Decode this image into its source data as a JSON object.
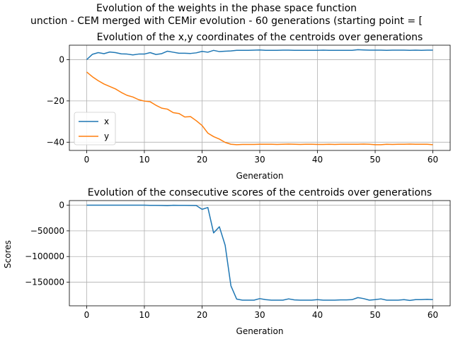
{
  "figure": {
    "suptitle_line1": "Evolution of the weights in the phase space  function",
    "suptitle_line2": "unction - CEM merged with CEMir evolution - 60 generations (starting point = ["
  },
  "chart_data": [
    {
      "type": "line",
      "title": "Evolution of the x,y coordinates of the centroids over generations",
      "xlabel": "Generation",
      "ylabel": "",
      "xlim": [
        -3,
        63
      ],
      "ylim": [
        -44,
        7
      ],
      "xticks": [
        0,
        10,
        20,
        30,
        40,
        50,
        60
      ],
      "yticks": [
        0,
        -20,
        -40
      ],
      "ytick_labels": [
        "0",
        "−20",
        "−40"
      ],
      "grid": true,
      "legend_position": "lower-left",
      "x": [
        0,
        1,
        2,
        3,
        4,
        5,
        6,
        7,
        8,
        9,
        10,
        11,
        12,
        13,
        14,
        15,
        16,
        17,
        18,
        19,
        20,
        21,
        22,
        23,
        24,
        25,
        26,
        27,
        28,
        29,
        30,
        31,
        32,
        33,
        34,
        35,
        36,
        37,
        38,
        39,
        40,
        41,
        42,
        43,
        44,
        45,
        46,
        47,
        48,
        49,
        50,
        51,
        52,
        53,
        54,
        55,
        56,
        57,
        58,
        59,
        60
      ],
      "series": [
        {
          "name": "x",
          "color": "#1f77b4",
          "values": [
            0.0,
            2.6,
            3.4,
            2.9,
            3.7,
            3.4,
            2.8,
            2.7,
            2.3,
            2.7,
            2.7,
            3.4,
            2.5,
            2.9,
            4.1,
            3.6,
            3.1,
            3.1,
            3.0,
            3.3,
            4.0,
            3.6,
            4.5,
            3.9,
            4.1,
            4.2,
            4.5,
            4.5,
            4.5,
            4.6,
            4.7,
            4.5,
            4.5,
            4.5,
            4.6,
            4.6,
            4.5,
            4.5,
            4.5,
            4.5,
            4.5,
            4.6,
            4.5,
            4.5,
            4.5,
            4.5,
            4.5,
            4.8,
            4.7,
            4.6,
            4.6,
            4.6,
            4.5,
            4.6,
            4.6,
            4.6,
            4.5,
            4.6,
            4.5,
            4.6,
            4.6
          ]
        },
        {
          "name": "y",
          "color": "#ff7f0e",
          "values": [
            -6.0,
            -8.3,
            -10.2,
            -11.8,
            -13.0,
            -14.2,
            -15.9,
            -17.3,
            -18.1,
            -19.4,
            -20.1,
            -20.4,
            -22.1,
            -23.5,
            -24.0,
            -25.7,
            -26.1,
            -27.8,
            -27.6,
            -29.6,
            -31.9,
            -35.6,
            -37.3,
            -38.5,
            -40.1,
            -41.0,
            -41.2,
            -41.1,
            -41.1,
            -41.1,
            -41.0,
            -41.0,
            -41.0,
            -41.1,
            -41.0,
            -40.9,
            -41.0,
            -41.1,
            -41.0,
            -41.0,
            -41.1,
            -41.1,
            -41.0,
            -41.1,
            -41.0,
            -41.0,
            -41.0,
            -41.0,
            -40.9,
            -41.0,
            -41.2,
            -41.2,
            -41.0,
            -41.1,
            -41.0,
            -41.0,
            -40.9,
            -41.0,
            -41.0,
            -41.0,
            -41.2
          ]
        }
      ]
    },
    {
      "type": "line",
      "title": "Evolution of the consecutive scores of the centroids over generations",
      "xlabel": "Generation",
      "ylabel": "Scores",
      "xlim": [
        -3,
        63
      ],
      "ylim": [
        -196000,
        9000
      ],
      "xticks": [
        0,
        10,
        20,
        30,
        40,
        50,
        60
      ],
      "yticks": [
        0,
        -50000,
        -100000,
        -150000
      ],
      "ytick_labels": [
        "0",
        "−50000",
        "−100000",
        "−150000"
      ],
      "grid": true,
      "x": [
        0,
        1,
        2,
        3,
        4,
        5,
        6,
        7,
        8,
        9,
        10,
        11,
        12,
        13,
        14,
        15,
        16,
        17,
        18,
        19,
        20,
        21,
        22,
        23,
        24,
        25,
        26,
        27,
        28,
        29,
        30,
        31,
        32,
        33,
        34,
        35,
        36,
        37,
        38,
        39,
        40,
        41,
        42,
        43,
        44,
        45,
        46,
        47,
        48,
        49,
        50,
        51,
        52,
        53,
        54,
        55,
        56,
        57,
        58,
        59,
        60
      ],
      "series": [
        {
          "color": "#1f77b4",
          "values": [
            0,
            0,
            0,
            0,
            0,
            0,
            0,
            0,
            0,
            0,
            0,
            -200,
            -300,
            -400,
            -800,
            -100,
            -300,
            -300,
            -500,
            -600,
            -8000,
            -4500,
            -54000,
            -42000,
            -78000,
            -157000,
            -183000,
            -185000,
            -185000,
            -185000,
            -182000,
            -184000,
            -185000,
            -185000,
            -185000,
            -182500,
            -184500,
            -185000,
            -185000,
            -185000,
            -184000,
            -185000,
            -185000,
            -185000,
            -184500,
            -184500,
            -184000,
            -180000,
            -182000,
            -185000,
            -184000,
            -182500,
            -185000,
            -185000,
            -185000,
            -184000,
            -185500,
            -184000,
            -184000,
            -183500,
            -184000
          ]
        }
      ]
    }
  ]
}
